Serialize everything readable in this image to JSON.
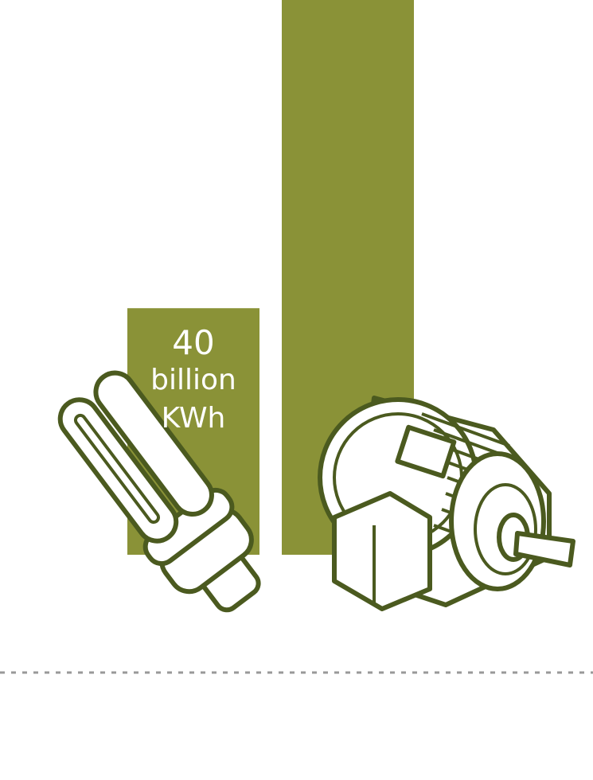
{
  "chart_data": {
    "type": "bar",
    "categories": [
      null,
      null
    ],
    "values": [
      40,
      90
    ],
    "color": "#8a9237",
    "unit_lines": [
      "billion",
      "KWh"
    ],
    "ylim": [
      0,
      90
    ]
  }
}
